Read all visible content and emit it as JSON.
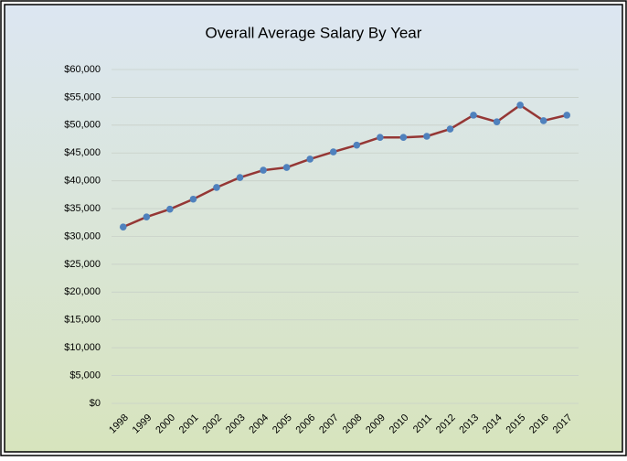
{
  "chart_data": {
    "type": "line",
    "title": "Overall Average Salary By Year",
    "categories": [
      "1998",
      "1999",
      "2000",
      "2001",
      "2002",
      "2003",
      "2004",
      "2005",
      "2006",
      "2007",
      "2008",
      "2009",
      "2010",
      "2011",
      "2012",
      "2013",
      "2014",
      "2015",
      "2016",
      "2017"
    ],
    "series": [
      {
        "name": "Overall Average Salary",
        "color": "#953735",
        "marker_color": "#4f81bd",
        "values": [
          31700,
          33500,
          34900,
          36700,
          38800,
          40600,
          41900,
          42400,
          43900,
          45200,
          46400,
          47800,
          47800,
          48000,
          49300,
          51800,
          50600,
          53600,
          50800,
          51800
        ]
      }
    ],
    "ylim": [
      0,
      60000
    ],
    "yticks": [
      {
        "value": 0,
        "label": "$0"
      },
      {
        "value": 5000,
        "label": "$5,000"
      },
      {
        "value": 10000,
        "label": "$10,000"
      },
      {
        "value": 15000,
        "label": "$15,000"
      },
      {
        "value": 20000,
        "label": "$20,000"
      },
      {
        "value": 25000,
        "label": "$25,000"
      },
      {
        "value": 30000,
        "label": "$30,000"
      },
      {
        "value": 35000,
        "label": "$35,000"
      },
      {
        "value": 40000,
        "label": "$40,000"
      },
      {
        "value": 45000,
        "label": "$45,000"
      },
      {
        "value": 50000,
        "label": "$50,000"
      },
      {
        "value": 55000,
        "label": "$55,000"
      },
      {
        "value": 60000,
        "label": "$60,000"
      }
    ],
    "grid": true
  }
}
